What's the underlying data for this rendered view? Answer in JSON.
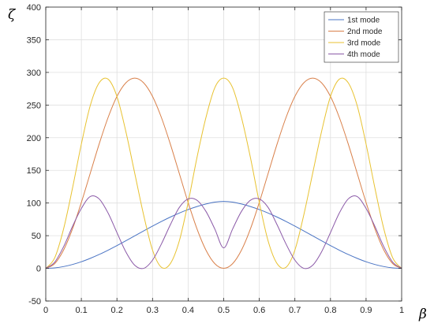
{
  "chart_data": {
    "type": "line",
    "xlabel": "β",
    "ylabel": "ζ",
    "xlim": [
      0,
      1
    ],
    "ylim": [
      -50,
      400
    ],
    "x_ticks": [
      "0",
      "0.1",
      "0.2",
      "0.3",
      "0.4",
      "0.5",
      "0.6",
      "0.7",
      "0.8",
      "0.9",
      "1"
    ],
    "y_ticks": [
      "-50",
      "0",
      "50",
      "100",
      "150",
      "200",
      "250",
      "300",
      "350",
      "400"
    ],
    "grid": true,
    "legend_position": "top-right",
    "x": [
      0,
      0.025,
      0.05,
      0.075,
      0.1,
      0.125,
      0.15,
      0.175,
      0.2,
      0.225,
      0.25,
      0.275,
      0.3,
      0.325,
      0.35,
      0.375,
      0.4,
      0.425,
      0.45,
      0.475,
      0.5,
      0.525,
      0.55,
      0.575,
      0.6,
      0.625,
      0.65,
      0.675,
      0.7,
      0.725,
      0.75,
      0.775,
      0.8,
      0.825,
      0.85,
      0.875,
      0.9,
      0.925,
      0.95,
      0.975,
      1
    ],
    "series": [
      {
        "name": "1st mode",
        "color": "#4a74c4",
        "values": [
          0,
          0.7,
          2.7,
          5.9,
          10.1,
          15.3,
          21.2,
          27.8,
          34.8,
          42.2,
          49.8,
          57.3,
          64.7,
          71.8,
          78.5,
          84.6,
          90.0,
          94.6,
          98.5,
          101.4,
          102.5,
          101.4,
          98.5,
          94.6,
          90.0,
          84.6,
          78.5,
          71.8,
          64.7,
          57.3,
          49.8,
          42.2,
          34.8,
          27.8,
          21.2,
          15.3,
          10.1,
          5.9,
          2.7,
          0.7,
          0
        ]
      },
      {
        "name": "2nd mode",
        "color": "#d9804a",
        "values": [
          0,
          7.2,
          28.0,
          60.3,
          100.9,
          145.6,
          190.3,
          230.8,
          263.2,
          284.0,
          291.2,
          284.0,
          263.2,
          230.8,
          190.3,
          145.6,
          100.9,
          60.3,
          28.0,
          7.2,
          0,
          7.2,
          28.0,
          60.3,
          100.9,
          145.6,
          190.3,
          230.8,
          263.2,
          284.0,
          291.2,
          284.0,
          263.2,
          230.8,
          190.3,
          145.6,
          100.9,
          60.3,
          28.0,
          7.2,
          0
        ]
      },
      {
        "name": "3rd mode",
        "color": "#e8c230",
        "values": [
          0,
          16.0,
          60.3,
          122.5,
          190.3,
          249.2,
          284.0,
          289.7,
          263.2,
          209.5,
          145.6,
          81.7,
          28.0,
          1.6,
          7.2,
          41.5,
          100.9,
          169.9,
          230.8,
          276.6,
          291.2,
          276.6,
          230.8,
          169.9,
          100.9,
          41.5,
          7.2,
          1.6,
          28.0,
          81.7,
          145.6,
          209.5,
          263.2,
          289.7,
          284.0,
          249.2,
          190.3,
          122.5,
          60.3,
          16.0,
          0
        ]
      },
      {
        "name": "4th mode",
        "color": "#8b5aa8",
        "values": [
          0,
          9.4,
          33.0,
          64.0,
          91.7,
          110.0,
          106.3,
          84.8,
          54.7,
          25.3,
          4.8,
          0.0,
          12.6,
          37.4,
          66.7,
          93.0,
          106.3,
          104.2,
          87.3,
          60.2,
          31.4,
          60.2,
          87.3,
          104.2,
          106.3,
          93.0,
          66.7,
          37.4,
          12.6,
          0.0,
          4.8,
          25.3,
          54.7,
          84.8,
          106.3,
          110.0,
          91.7,
          64.0,
          33.0,
          9.4,
          0
        ]
      }
    ]
  }
}
